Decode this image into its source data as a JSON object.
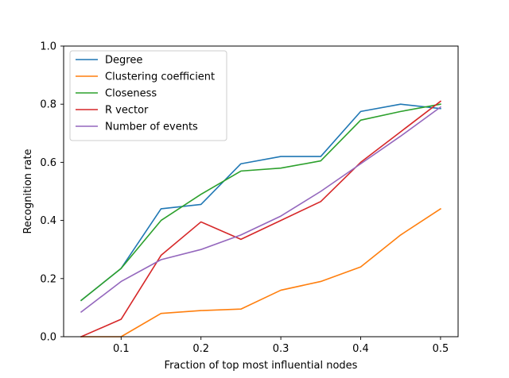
{
  "chart_data": {
    "type": "line",
    "title": "",
    "xlabel": "Fraction of top most influential nodes",
    "ylabel": "Recognition rate",
    "x": [
      0.05,
      0.1,
      0.15,
      0.2,
      0.25,
      0.3,
      0.35,
      0.4,
      0.45,
      0.5
    ],
    "xlim": [
      0.028,
      0.522
    ],
    "ylim": [
      0.0,
      1.0
    ],
    "xticks": [
      0.1,
      0.2,
      0.3,
      0.4,
      0.5
    ],
    "xtick_labels": [
      "0.1",
      "0.2",
      "0.3",
      "0.4",
      "0.5"
    ],
    "yticks": [
      0.0,
      0.2,
      0.4,
      0.6,
      0.8,
      1.0
    ],
    "ytick_labels": [
      "0.0",
      "0.2",
      "0.4",
      "0.6",
      "0.8",
      "1.0"
    ],
    "grid": false,
    "legend_position": "top-left",
    "series": [
      {
        "name": "Degree",
        "color": "#1f77b4",
        "values": [
          0.125,
          0.235,
          0.44,
          0.455,
          0.595,
          0.62,
          0.62,
          0.775,
          0.8,
          0.785
        ]
      },
      {
        "name": "Clustering coefficient",
        "color": "#ff7f0e",
        "values": [
          0.0,
          0.0,
          0.08,
          0.09,
          0.095,
          0.16,
          0.19,
          0.24,
          0.35,
          0.44
        ]
      },
      {
        "name": "Closeness",
        "color": "#2ca02c",
        "values": [
          0.125,
          0.235,
          0.4,
          0.49,
          0.57,
          0.58,
          0.605,
          0.745,
          0.775,
          0.8
        ]
      },
      {
        "name": "R vector",
        "color": "#d62728",
        "values": [
          0.0,
          0.06,
          0.28,
          0.395,
          0.335,
          0.4,
          0.465,
          0.6,
          0.705,
          0.81
        ]
      },
      {
        "name": "Number of events",
        "color": "#9467bd",
        "values": [
          0.085,
          0.19,
          0.265,
          0.3,
          0.35,
          0.415,
          0.5,
          0.595,
          0.69,
          0.79
        ]
      }
    ]
  }
}
